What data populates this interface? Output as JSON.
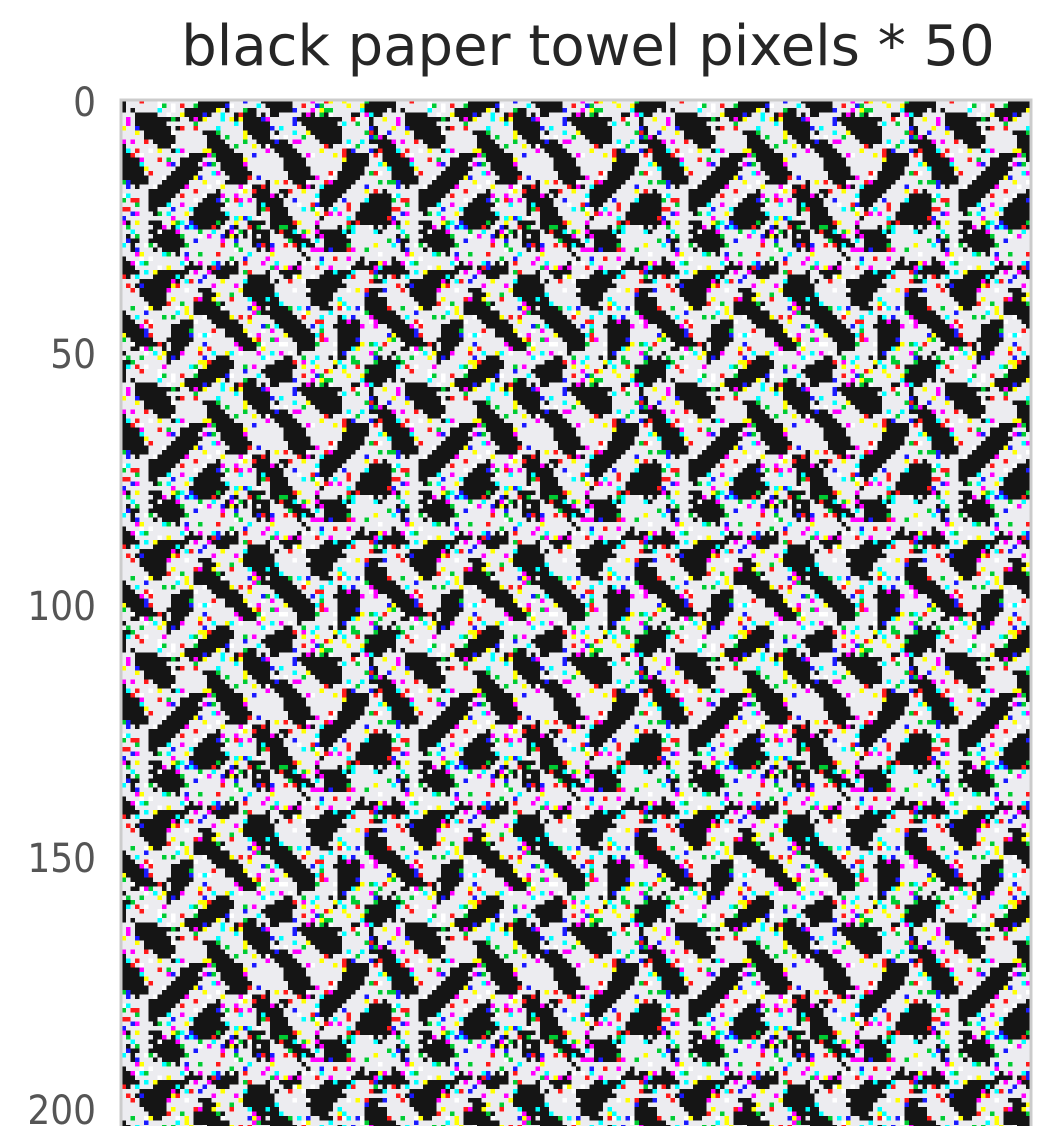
{
  "chart_data": {
    "type": "image",
    "title": "black paper towel pixels * 50",
    "ylim": [
      200,
      0
    ],
    "yticks": [
      0,
      50,
      100,
      150,
      200
    ]
  }
}
